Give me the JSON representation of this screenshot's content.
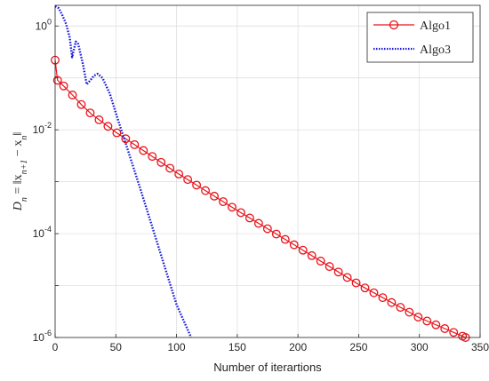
{
  "chart_data": {
    "type": "line",
    "xlabel": "Number of iterartions",
    "ylabel": "D_n = ||x_{n+1} − x_n||",
    "ylabel_main": "D",
    "ylabel_sub": "n",
    "ylabel_rest": " = ‖x",
    "ylabel_sub2": "n+1",
    "ylabel_rest2": " − x",
    "ylabel_sub3": "n",
    "ylabel_end": "‖",
    "xlim": [
      0,
      350
    ],
    "ylim": [
      1e-06,
      2.5
    ],
    "y_scale": "log",
    "grid": true,
    "legend_position": "top-right",
    "x_ticks": [
      "0",
      "50",
      "100",
      "150",
      "200",
      "250",
      "300",
      "350"
    ],
    "y_ticks": [
      {
        "base": "10",
        "exp": "0"
      },
      {
        "base": "10",
        "exp": "-2"
      },
      {
        "base": "10",
        "exp": "-4"
      },
      {
        "base": "10",
        "exp": "-6"
      }
    ],
    "series": [
      {
        "name": "Algo1",
        "color": "#e8141b",
        "style": "solid-circles",
        "points": [
          [
            0,
            0.22
          ],
          [
            2,
            0.09
          ],
          [
            7,
            0.07
          ],
          [
            15,
            0.045
          ],
          [
            22,
            0.03
          ],
          [
            30,
            0.02
          ],
          [
            50,
            0.009
          ],
          [
            100,
            0.0015
          ],
          [
            150,
            0.00028
          ],
          [
            200,
            5.5e-05
          ],
          [
            250,
            1.05e-05
          ],
          [
            300,
            2.4e-06
          ],
          [
            338,
            1e-06
          ]
        ]
      },
      {
        "name": "Algo3",
        "color": "#1a1adb",
        "style": "dotted",
        "points": [
          [
            0,
            2.4
          ],
          [
            3,
            2.2
          ],
          [
            6,
            1.6
          ],
          [
            9,
            1.1
          ],
          [
            12,
            0.6
          ],
          [
            14,
            0.25
          ],
          [
            17,
            0.5
          ],
          [
            19,
            0.45
          ],
          [
            23,
            0.18
          ],
          [
            26,
            0.075
          ],
          [
            29,
            0.09
          ],
          [
            32,
            0.11
          ],
          [
            35,
            0.12
          ],
          [
            39,
            0.1
          ],
          [
            45,
            0.05
          ],
          [
            52,
            0.015
          ],
          [
            60,
            0.004
          ],
          [
            70,
            0.00075
          ],
          [
            80,
            0.000135
          ],
          [
            90,
            2.4e-05
          ],
          [
            100,
            4.3e-06
          ],
          [
            112,
            1e-06
          ]
        ]
      }
    ]
  }
}
